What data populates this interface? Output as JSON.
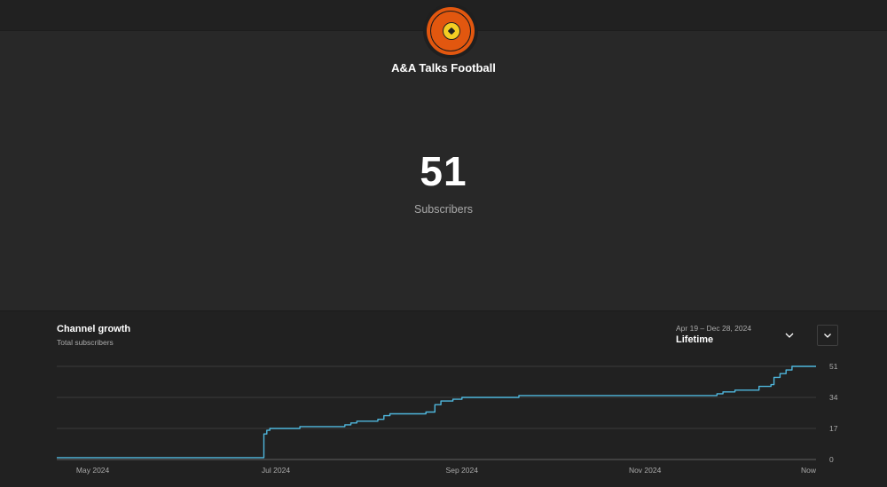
{
  "channel": {
    "name": "A&A Talks Football",
    "logo_icon": "football-logo-icon"
  },
  "summary": {
    "count": "51",
    "label": "Subscribers"
  },
  "panel": {
    "title": "Channel growth",
    "subtitle": "Total subscribers",
    "date_range": "Apr 19 – Dec 28, 2024",
    "period_label": "Lifetime"
  },
  "colors": {
    "line": "#4fb7dd",
    "background": "#282828",
    "panel": "#212121",
    "grid": "#3a3a3a"
  },
  "chart_data": {
    "type": "line",
    "title": "Channel growth",
    "subtitle": "Total subscribers",
    "y_ticks": [
      0,
      17,
      34,
      51
    ],
    "x_tick_labels": [
      {
        "date": "2024-05-01",
        "label": "May 2024"
      },
      {
        "date": "2024-07-01",
        "label": "Jul 2024"
      },
      {
        "date": "2024-09-01",
        "label": "Sep 2024"
      },
      {
        "date": "2024-11-01",
        "label": "Nov 2024"
      },
      {
        "date": "2024-12-28",
        "label": "Now"
      }
    ],
    "xlim": [
      "2024-04-19",
      "2024-12-28"
    ],
    "ylim": [
      0,
      51
    ],
    "grid": "horizontal",
    "y_axis_side": "right",
    "series": [
      {
        "x": [
          "2024-04-19",
          "2024-06-26",
          "2024-06-27",
          "2024-06-28",
          "2024-06-29",
          "2024-07-01",
          "2024-07-04",
          "2024-07-09",
          "2024-07-16",
          "2024-07-24",
          "2024-07-26",
          "2024-07-28",
          "2024-08-01",
          "2024-08-04",
          "2024-08-06",
          "2024-08-08",
          "2024-08-10",
          "2024-08-20",
          "2024-08-23",
          "2024-08-25",
          "2024-08-29",
          "2024-09-01",
          "2024-09-08",
          "2024-09-20",
          "2024-09-30",
          "2024-10-15",
          "2024-10-30",
          "2024-11-10",
          "2024-11-25",
          "2024-11-27",
          "2024-12-01",
          "2024-12-09",
          "2024-12-13",
          "2024-12-14",
          "2024-12-16",
          "2024-12-18",
          "2024-12-20",
          "2024-12-28"
        ],
        "values": [
          1,
          1,
          14,
          16,
          17,
          17,
          17,
          18,
          18,
          19,
          20,
          21,
          21,
          22,
          24,
          25,
          25,
          26,
          30,
          32,
          33,
          34,
          34,
          35,
          35,
          35,
          35,
          35,
          36,
          37,
          38,
          40,
          41,
          45,
          47,
          49,
          51,
          51
        ]
      }
    ]
  }
}
